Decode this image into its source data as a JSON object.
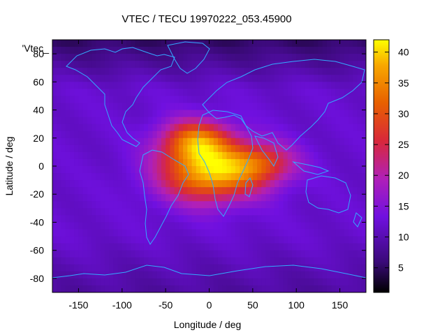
{
  "chart_data": {
    "type": "heatmap",
    "title": "VTEC / TECU 19970222_053.45900",
    "xlabel": "Longitude / deg",
    "ylabel": "Latitude / deg",
    "key_label": "'Vtec_",
    "xlim": [
      -180,
      180
    ],
    "ylim": [
      -90,
      90
    ],
    "xticks": [
      -150,
      -100,
      -50,
      0,
      50,
      100,
      150
    ],
    "yticks": [
      -80,
      -60,
      -40,
      -20,
      0,
      20,
      40,
      60,
      80
    ],
    "colorbar": {
      "min": 1,
      "max": 42,
      "ticks": [
        5,
        10,
        15,
        20,
        25,
        30,
        35,
        40
      ],
      "colormap": "black-blue-purple-red-orange-yellow"
    },
    "anomaly_peaks": [
      {
        "lon": 0,
        "lat": -5,
        "value": 38
      },
      {
        "lon": -15,
        "lat": 18,
        "value": 32
      },
      {
        "lon": 60,
        "lat": 2,
        "value": 26
      }
    ],
    "background_level": 12,
    "colors": {
      "coastline": "#33aaff",
      "frame": "#000000"
    }
  }
}
